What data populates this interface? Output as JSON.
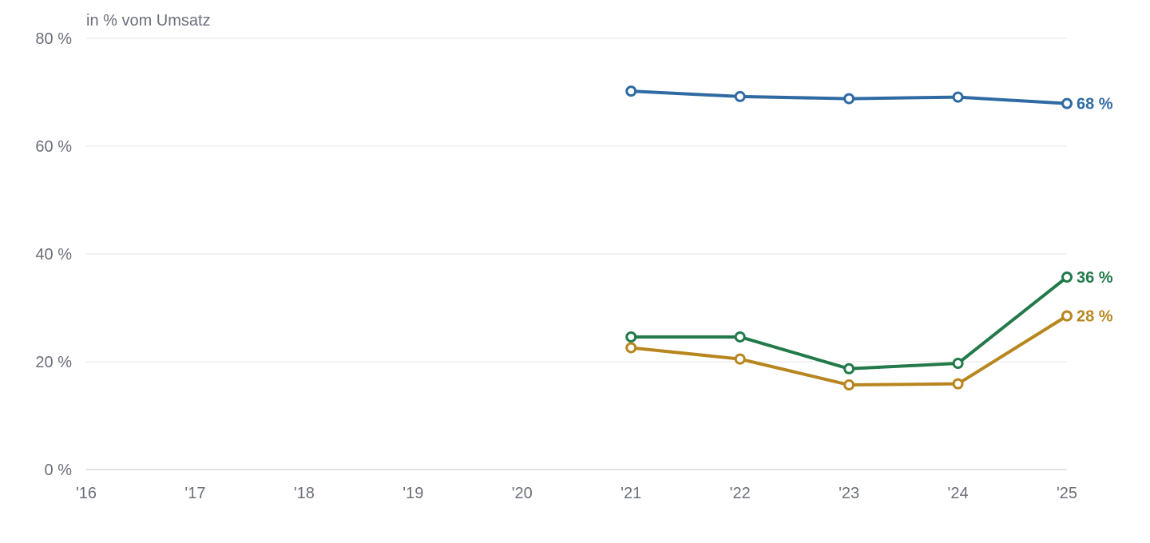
{
  "chart_data": {
    "type": "line",
    "ylabel": "in % vom Umsatz",
    "x": [
      "'16",
      "'17",
      "'18",
      "'19",
      "'20",
      "'21",
      "'22",
      "'23",
      "'24",
      "'25"
    ],
    "ylim": [
      0,
      80
    ],
    "yticks": [
      0,
      20,
      40,
      60,
      80
    ],
    "ytick_labels": [
      "0 %",
      "20 %",
      "40 %",
      "60 %",
      "80 %"
    ],
    "grid": true,
    "series": [
      {
        "color": "#2f6aa3",
        "values": [
          null,
          null,
          null,
          null,
          null,
          70.2,
          69.2,
          68.8,
          69.1,
          67.9
        ],
        "end_label": "68 %"
      },
      {
        "color": "#227a4a",
        "values": [
          null,
          null,
          null,
          null,
          null,
          24.6,
          24.6,
          18.7,
          19.7,
          35.7
        ],
        "end_label": "36 %"
      },
      {
        "color": "#b8861f",
        "values": [
          null,
          null,
          null,
          null,
          null,
          22.6,
          20.5,
          15.7,
          15.9,
          28.5
        ],
        "end_label": "28 %"
      }
    ]
  }
}
